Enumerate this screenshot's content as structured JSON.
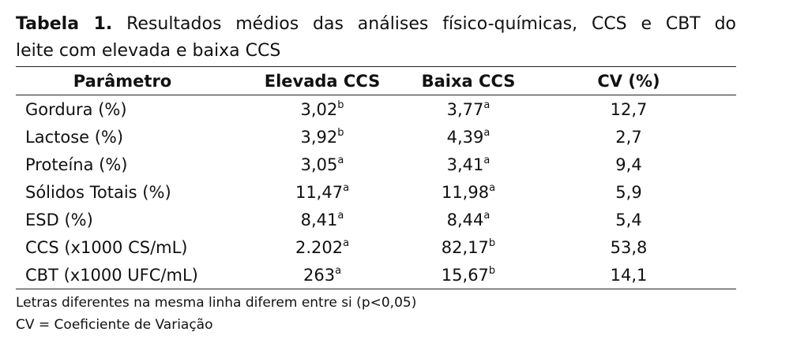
{
  "caption": {
    "label": "Tabela 1.",
    "lines": [
      "Resultados médios das análises físico-químicas, CCS e CBT do",
      "leite com elevada e baixa CCS"
    ]
  },
  "table": {
    "headers": [
      "Parâmetro",
      "Elevada CCS",
      "Baixa CCS",
      "CV (%)"
    ],
    "rows": [
      [
        "Gordura (%)",
        {
          "value": "3,02",
          "sup": "b"
        },
        {
          "value": "3,77",
          "sup": "a"
        },
        "12,7"
      ],
      [
        "Lactose (%)",
        {
          "value": "3,92",
          "sup": "b"
        },
        {
          "value": "4,39",
          "sup": "a"
        },
        "2,7"
      ],
      [
        "Proteína (%)",
        {
          "value": "3,05",
          "sup": "a"
        },
        {
          "value": "3,41",
          "sup": "a"
        },
        "9,4"
      ],
      [
        "Sólidos Totais (%)",
        {
          "value": "11,47",
          "sup": "a"
        },
        {
          "value": "11,98",
          "sup": "a"
        },
        "5,9"
      ],
      [
        "ESD (%)",
        {
          "value": "8,41",
          "sup": "a"
        },
        {
          "value": "8,44",
          "sup": "a"
        },
        "5,4"
      ],
      [
        "CCS (x1000 CS/mL)",
        {
          "value": "2.202",
          "sup": "a"
        },
        {
          "value": "82,17",
          "sup": "b"
        },
        "53,8"
      ],
      [
        "CBT (x1000 UFC/mL)",
        {
          "value": "263",
          "sup": "a"
        },
        {
          "value": "15,67",
          "sup": "b"
        },
        "14,1"
      ]
    ]
  },
  "footnotes": [
    "Letras diferentes na mesma linha diferem entre si (p<0,05)",
    "CV = Coeficiente de Variação"
  ]
}
